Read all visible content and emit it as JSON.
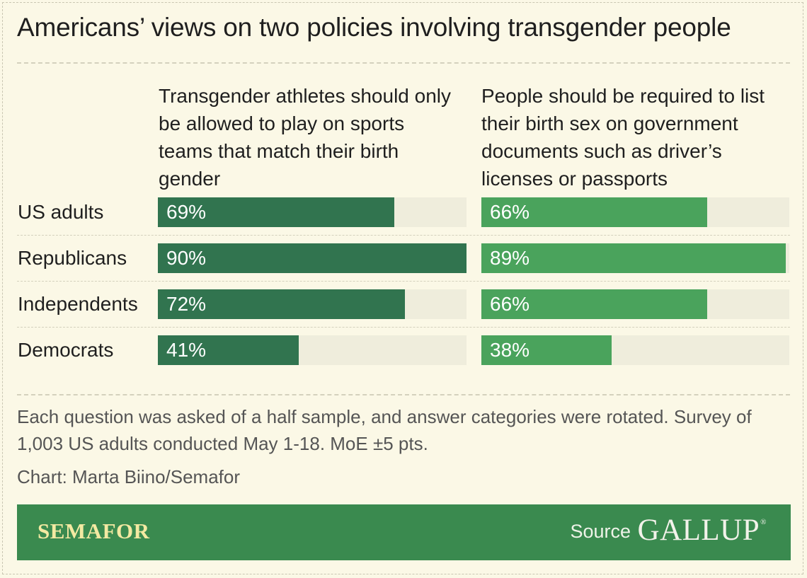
{
  "title": "Americans’ views on two policies involving transgender people",
  "chart_data": {
    "type": "bar",
    "orientation": "horizontal",
    "xlim": [
      0,
      90
    ],
    "categories": [
      "US adults",
      "Republicans",
      "Independents",
      "Democrats"
    ],
    "series": [
      {
        "name": "Transgender athletes should only be allowed to play on sports teams that match their birth gender",
        "values": [
          69,
          90,
          72,
          41
        ],
        "labels": [
          "69%",
          "90%",
          "72%",
          "41%"
        ],
        "color": "#31744f"
      },
      {
        "name": "People should be required to list their birth sex on government documents such as driver’s licenses or passports",
        "values": [
          66,
          89,
          66,
          38
        ],
        "labels": [
          "66%",
          "89%",
          "66%",
          "38%"
        ],
        "color": "#4aa35c"
      }
    ]
  },
  "note": "Each question was asked of a half sample, and answer categories were rotated. Survey of 1,003 US adults conducted May 1-18. MoE ±5 pts.",
  "credit": "Chart: Marta Biino/Semafor",
  "footer": {
    "brand": "SEMAFOR",
    "source_label": "Source",
    "source_name": "GALLUP",
    "source_mark": "®"
  },
  "colors": {
    "background": "#fbf8e6",
    "track": "#efeddc",
    "footer": "#3a8a4f"
  }
}
